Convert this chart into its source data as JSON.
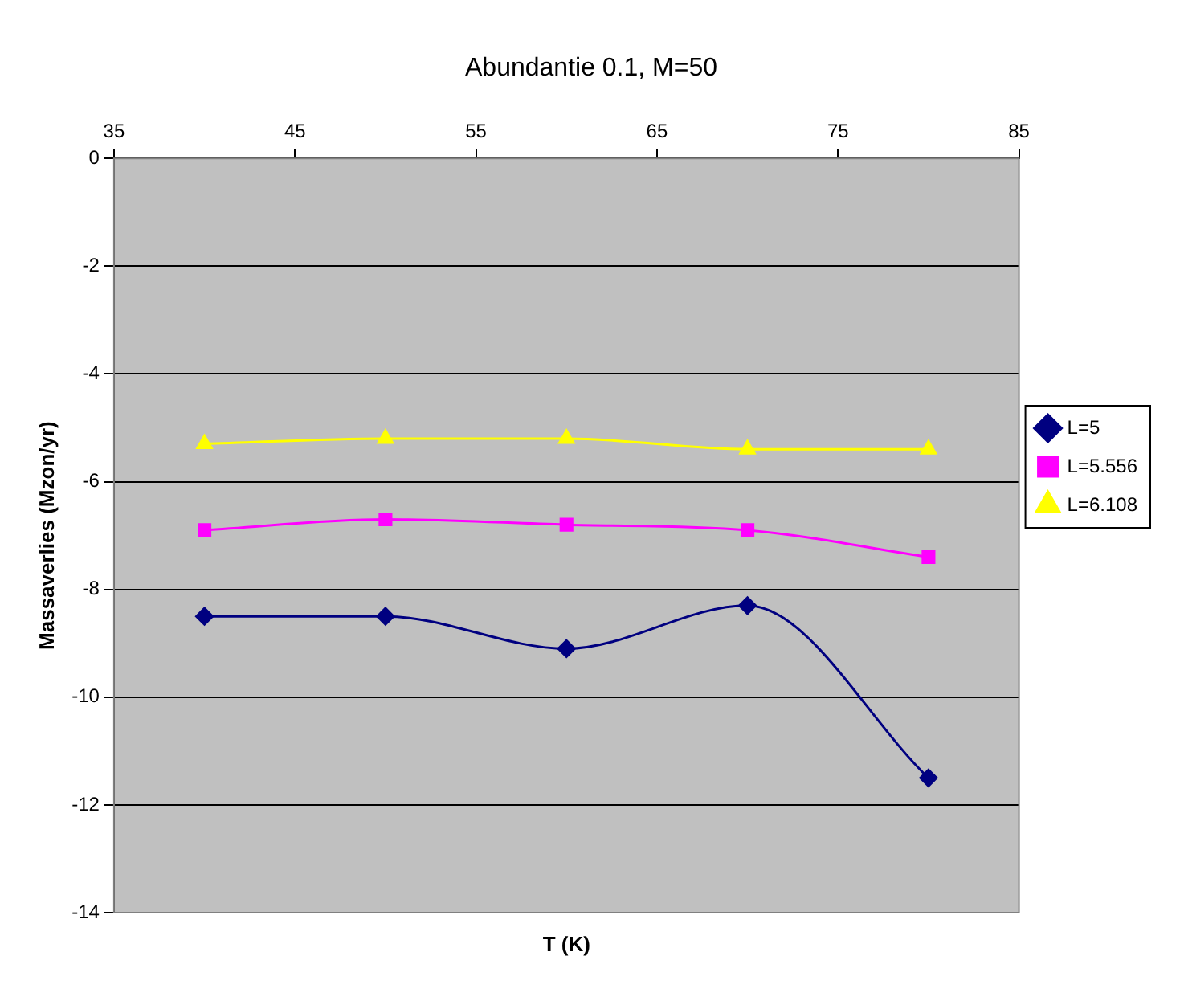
{
  "chart_data": {
    "type": "line",
    "title": "Abundantie 0.1, M=50",
    "xlabel": "T (K)",
    "ylabel": "Massaverlies (Mzon/yr)",
    "x": [
      40,
      50,
      60,
      70,
      80
    ],
    "series": [
      {
        "name": "L=5",
        "color": "#000080",
        "marker": "diamond",
        "values": [
          -8.5,
          -8.5,
          -9.1,
          -8.3,
          -11.5
        ]
      },
      {
        "name": "L=5.556",
        "color": "#ff00ff",
        "marker": "square",
        "values": [
          -6.9,
          -6.7,
          -6.8,
          -6.9,
          -7.4
        ]
      },
      {
        "name": "L=6.108",
        "color": "#ffff00",
        "marker": "triangle",
        "values": [
          -5.3,
          -5.2,
          -5.2,
          -5.4,
          -5.4
        ]
      }
    ],
    "xlim": [
      35,
      85
    ],
    "xticks": [
      35,
      45,
      55,
      65,
      75,
      85
    ],
    "ylim": [
      -14,
      0
    ],
    "yticks": [
      -14,
      -12,
      -10,
      -8,
      -6,
      -4,
      -2,
      0
    ],
    "grid": "y",
    "legend": "right"
  }
}
